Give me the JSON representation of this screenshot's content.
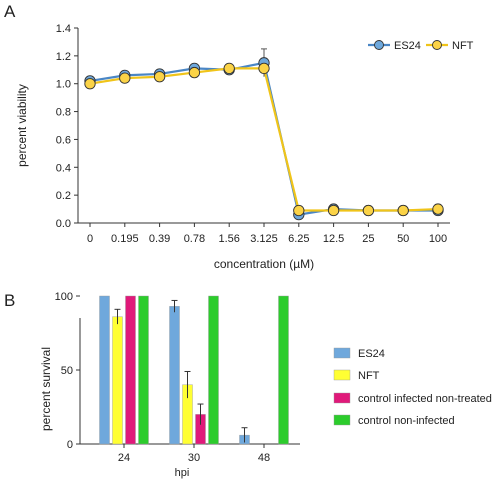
{
  "panels": {
    "a": {
      "label": "A"
    },
    "b": {
      "label": "B"
    }
  },
  "chart_data": [
    {
      "type": "line",
      "panel": "A",
      "title": "",
      "xlabel": "concentration (µM)",
      "ylabel": "percent viability",
      "categories": [
        "0",
        "0.195",
        "0.39",
        "0.78",
        "1.56",
        "3.125",
        "6.25",
        "12.5",
        "25",
        "50",
        "100"
      ],
      "ylim": [
        0.0,
        1.4
      ],
      "yticks": [
        "0.0",
        "0.2",
        "0.4",
        "0.6",
        "0.8",
        "1.0",
        "1.2",
        "1.4"
      ],
      "grid": false,
      "legend_position": "top-right",
      "series": [
        {
          "name": "ES24",
          "color": "#4a86c5",
          "marker_fill": "#6ea8dc",
          "values": [
            1.02,
            1.06,
            1.07,
            1.11,
            1.1,
            1.15,
            0.06,
            0.1,
            0.09,
            0.09,
            0.09
          ],
          "errors": [
            0.02,
            0.03,
            0.02,
            0.02,
            0.01,
            0.1,
            0.01,
            0.01,
            0.01,
            0.01,
            0.01
          ]
        },
        {
          "name": "NFT",
          "color": "#f0c419",
          "marker_fill": "#fbd347",
          "values": [
            1.0,
            1.04,
            1.05,
            1.08,
            1.11,
            1.11,
            0.09,
            0.09,
            0.09,
            0.09,
            0.1
          ],
          "errors": [
            0.02,
            0.02,
            0.02,
            0.02,
            0.01,
            0.02,
            0.01,
            0.01,
            0.01,
            0.01,
            0.01
          ]
        }
      ]
    },
    {
      "type": "bar",
      "panel": "B",
      "title": "",
      "xlabel": "hpi",
      "ylabel": "percent survival",
      "categories": [
        "24",
        "30",
        "48"
      ],
      "ylim": [
        0,
        100
      ],
      "yticks": [
        "0",
        "50",
        "100"
      ],
      "grid": false,
      "legend_position": "right",
      "series": [
        {
          "name": "ES24",
          "color": "#6fa8dc",
          "values": [
            100,
            93,
            6
          ],
          "errors": [
            0,
            4,
            5
          ]
        },
        {
          "name": "NFT",
          "color": "#ffff33",
          "values": [
            86,
            40,
            0
          ],
          "errors": [
            5,
            9,
            0
          ]
        },
        {
          "name": "control infected non-treated",
          "color": "#e0197a",
          "values": [
            100,
            20,
            0
          ],
          "errors": [
            0,
            7,
            0
          ]
        },
        {
          "name": "control non-infected",
          "color": "#2ccc2c",
          "values": [
            100,
            100,
            100
          ],
          "errors": [
            0,
            0,
            0
          ]
        }
      ]
    }
  ]
}
